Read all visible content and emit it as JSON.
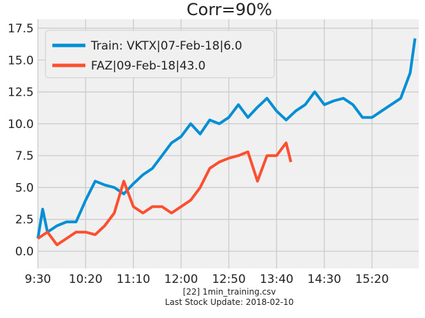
{
  "chart_data": {
    "type": "line",
    "title": "Corr=90%",
    "footer": [
      "[22] 1min_training.csv",
      "Last Stock Update: 2018-02-10"
    ],
    "xlim": [
      570,
      969
    ],
    "ylim": [
      -1.35,
      18.2
    ],
    "xticks": [
      {
        "value": 570,
        "label": "9:30"
      },
      {
        "value": 620,
        "label": "10:20"
      },
      {
        "value": 670,
        "label": "11:10"
      },
      {
        "value": 720,
        "label": "12:00"
      },
      {
        "value": 770,
        "label": "12:50"
      },
      {
        "value": 820,
        "label": "13:40"
      },
      {
        "value": 870,
        "label": "14:30"
      },
      {
        "value": 920,
        "label": "15:20"
      }
    ],
    "yticks": [
      {
        "value": 0,
        "label": "0.0"
      },
      2.5,
      {
        "value": 5,
        "label": "5.0"
      },
      7.5,
      {
        "value": 10,
        "label": "10.0"
      },
      12.5,
      {
        "value": 15,
        "label": "15.0"
      },
      17.5
    ],
    "grid": true,
    "legend": "upper left",
    "series": [
      {
        "name": "Train: VKTX|07-Feb-18|6.0",
        "color": "#008fd5",
        "x": [
          570,
          575,
          580,
          590,
          600,
          610,
          620,
          630,
          640,
          650,
          660,
          670,
          680,
          690,
          700,
          710,
          720,
          730,
          740,
          750,
          760,
          770,
          780,
          790,
          800,
          810,
          820,
          830,
          840,
          850,
          860,
          870,
          880,
          890,
          900,
          910,
          920,
          930,
          940,
          950,
          960,
          965
        ],
        "values": [
          1.0,
          3.3,
          1.5,
          2.0,
          2.3,
          2.3,
          4.0,
          5.5,
          5.2,
          5.0,
          4.5,
          5.3,
          6.0,
          6.5,
          7.5,
          8.5,
          9.0,
          10.0,
          9.2,
          10.3,
          10.0,
          10.5,
          11.5,
          10.5,
          11.3,
          12.0,
          11.0,
          10.3,
          11.0,
          11.5,
          12.5,
          11.5,
          11.8,
          12.0,
          11.5,
          10.5,
          10.5,
          11.0,
          11.5,
          12.0,
          14.0,
          16.7
        ]
      },
      {
        "name": "FAZ|09-Feb-18|43.0",
        "color": "#fc4f30",
        "x": [
          570,
          580,
          590,
          600,
          610,
          620,
          630,
          640,
          650,
          660,
          670,
          680,
          690,
          700,
          710,
          720,
          730,
          740,
          750,
          760,
          770,
          780,
          790,
          800,
          810,
          820,
          830,
          835
        ],
        "values": [
          1.0,
          1.5,
          0.5,
          1.0,
          1.5,
          1.5,
          1.3,
          2.0,
          3.0,
          5.5,
          3.5,
          3.0,
          3.5,
          3.5,
          3.0,
          3.5,
          4.0,
          5.0,
          6.5,
          7.0,
          7.3,
          7.5,
          7.8,
          5.5,
          7.5,
          7.5,
          8.5,
          7.0
        ]
      }
    ]
  }
}
